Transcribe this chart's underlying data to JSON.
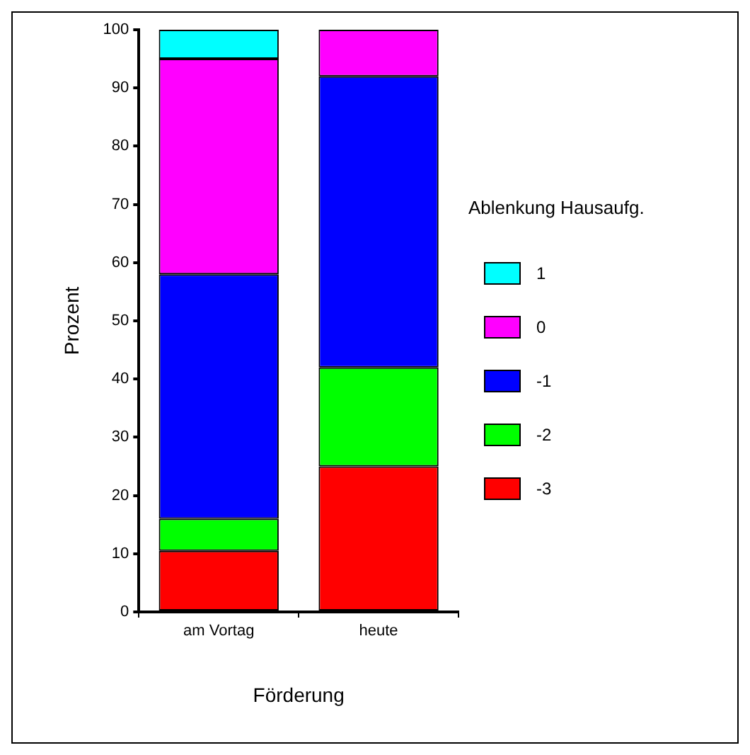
{
  "chart_data": {
    "type": "bar",
    "stacked": true,
    "xlabel": "Förderung",
    "ylabel": "Prozent",
    "legend_title": "Ablenkung Hausaufg.",
    "legend": "right",
    "grid": false,
    "categories": [
      "am Vortag",
      "heute"
    ],
    "series": [
      {
        "name": "-3",
        "color": "#ff0000",
        "values": [
          10.5,
          25
        ]
      },
      {
        "name": "-2",
        "color": "#00ff00",
        "values": [
          5.5,
          17
        ]
      },
      {
        "name": "-1",
        "color": "#0000ff",
        "values": [
          42,
          50
        ]
      },
      {
        "name": "0",
        "color": "#ff00ff",
        "values": [
          37,
          8
        ]
      },
      {
        "name": "1",
        "color": "#00ffff",
        "values": [
          5,
          0
        ]
      }
    ],
    "ylim": [
      0,
      100
    ],
    "yticks": [
      0,
      10,
      20,
      30,
      40,
      50,
      60,
      70,
      80,
      90,
      100
    ]
  }
}
